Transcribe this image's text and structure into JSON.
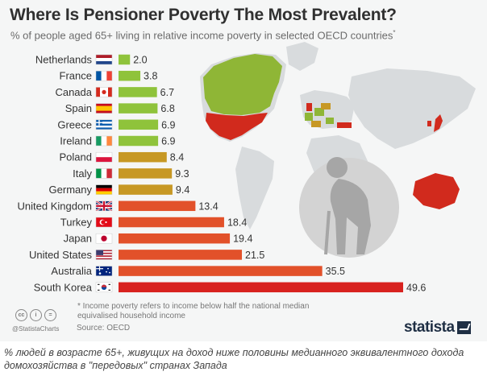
{
  "title": "Where Is Pensioner Poverty The Most Prevalent?",
  "subtitle": "% of people aged 65+ living in relative income poverty in selected OECD countries",
  "subtitle_marker": "*",
  "footnote": "* Income poverty refers to income below half the national median equivalised household income",
  "source": "Source: OECD",
  "credit_handle": "@StatistaCharts",
  "license_icons": [
    "cc",
    "i",
    "="
  ],
  "brand": "statista",
  "caption": "% людей в возрасте 65+, живущих на доход ниже половины медианного эквивалентного дохода домохозяйства в \"передовых\" странах Запада",
  "colors": {
    "low": "#8fc33b",
    "mid": "#c79824",
    "high": "#e2512a",
    "max": "#d8221f",
    "map_land": "#d8dbdd",
    "map_green": "#8fb636",
    "map_red": "#d12a1d",
    "circle": "#d3d3d3",
    "figure": "#a6a6a6"
  },
  "chart_data": {
    "type": "bar",
    "orientation": "horizontal",
    "categories": [
      "Netherlands",
      "France",
      "Canada",
      "Spain",
      "Greece",
      "Ireland",
      "Poland",
      "Italy",
      "Germany",
      "United Kingdom",
      "Turkey",
      "Japan",
      "United States",
      "Australia",
      "South Korea"
    ],
    "values": [
      2.0,
      3.8,
      6.7,
      6.8,
      6.9,
      6.9,
      8.4,
      9.3,
      9.4,
      13.4,
      18.4,
      19.4,
      21.5,
      35.5,
      49.6
    ],
    "value_labels": [
      "2.0",
      "3.8",
      "6.7",
      "6.8",
      "6.9",
      "6.9",
      "8.4",
      "9.3",
      "9.4",
      "13.4",
      "18.4",
      "19.4",
      "21.5",
      "35.5",
      "49.6"
    ],
    "flags": [
      "flag-netherlands",
      "flag-france",
      "flag-canada",
      "flag-spain",
      "flag-greece",
      "flag-ireland",
      "flag-poland",
      "flag-italy",
      "flag-germany",
      "flag-united-kingdom",
      "flag-turkey",
      "flag-japan",
      "flag-united-states",
      "flag-australia",
      "flag-south-korea"
    ],
    "xlim": [
      0,
      50
    ],
    "grid": false,
    "legend": "none"
  }
}
